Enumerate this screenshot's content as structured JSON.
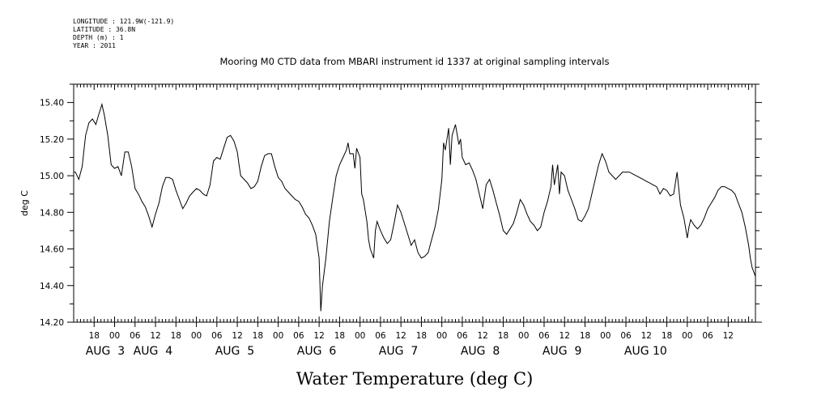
{
  "meta": {
    "longitude": "LONGITUDE : 121.9W(-121.9)",
    "latitude": "LATITUDE : 36.8N",
    "depth": "DEPTH (m) : 1",
    "year": "YEAR : 2011"
  },
  "chart_data": {
    "type": "line",
    "title": "Mooring M0 CTD data from MBARI instrument id 1337 at original sampling intervals",
    "xlabel": "Water Temperature (deg C)",
    "ylabel": "deg C",
    "x_units": "hours since 2011-08-02 12:00",
    "xlim": [
      0,
      200
    ],
    "ylim": [
      14.2,
      15.5
    ],
    "y_ticks": [
      14.2,
      14.4,
      14.6,
      14.8,
      15.0,
      15.2,
      15.4
    ],
    "y_tick_labels": [
      "14.20",
      "14.40",
      "14.60",
      "14.80",
      "15.00",
      "15.20",
      "15.40"
    ],
    "hour_ticks": [
      {
        "x": 6,
        "label": "18"
      },
      {
        "x": 12,
        "label": "00"
      },
      {
        "x": 18,
        "label": "06"
      },
      {
        "x": 24,
        "label": "12"
      },
      {
        "x": 30,
        "label": "18"
      },
      {
        "x": 36,
        "label": "00"
      },
      {
        "x": 42,
        "label": "06"
      },
      {
        "x": 48,
        "label": "12"
      },
      {
        "x": 54,
        "label": "18"
      },
      {
        "x": 60,
        "label": "00"
      },
      {
        "x": 66,
        "label": "06"
      },
      {
        "x": 72,
        "label": "12"
      },
      {
        "x": 78,
        "label": "18"
      },
      {
        "x": 84,
        "label": "00"
      },
      {
        "x": 90,
        "label": "06"
      },
      {
        "x": 96,
        "label": "12"
      },
      {
        "x": 102,
        "label": "18"
      },
      {
        "x": 108,
        "label": "00"
      },
      {
        "x": 114,
        "label": "06"
      },
      {
        "x": 120,
        "label": "12"
      },
      {
        "x": 126,
        "label": "18"
      },
      {
        "x": 132,
        "label": "00"
      },
      {
        "x": 138,
        "label": "06"
      },
      {
        "x": 144,
        "label": "12"
      },
      {
        "x": 150,
        "label": "18"
      },
      {
        "x": 156,
        "label": "00"
      },
      {
        "x": 162,
        "label": "06"
      },
      {
        "x": 168,
        "label": "12"
      },
      {
        "x": 174,
        "label": "18"
      },
      {
        "x": 180,
        "label": "00"
      },
      {
        "x": 186,
        "label": "06"
      },
      {
        "x": 192,
        "label": "12"
      }
    ],
    "day_labels": [
      {
        "x": 3.5,
        "label": "AUG  3"
      },
      {
        "x": 17.5,
        "label": "AUG  4"
      },
      {
        "x": 41.5,
        "label": "AUG  5"
      },
      {
        "x": 65.5,
        "label": "AUG  6"
      },
      {
        "x": 89.5,
        "label": "AUG  7"
      },
      {
        "x": 113.5,
        "label": "AUG  8"
      },
      {
        "x": 137.5,
        "label": "AUG  9"
      },
      {
        "x": 161.5,
        "label": "AUG 10"
      }
    ],
    "series": [
      {
        "values": [
          [
            0,
            15.02
          ],
          [
            0.5,
            15.02
          ],
          [
            1.5,
            14.98
          ],
          [
            2.5,
            15.05
          ],
          [
            3.5,
            15.22
          ],
          [
            4.5,
            15.29
          ],
          [
            5.5,
            15.31
          ],
          [
            6.5,
            15.28
          ],
          [
            7.3,
            15.33
          ],
          [
            8.3,
            15.39
          ],
          [
            9,
            15.33
          ],
          [
            10,
            15.22
          ],
          [
            11,
            15.06
          ],
          [
            12,
            15.04
          ],
          [
            13,
            15.05
          ],
          [
            14,
            15.0
          ],
          [
            15,
            15.13
          ],
          [
            16,
            15.13
          ],
          [
            17,
            15.05
          ],
          [
            18,
            14.93
          ],
          [
            19,
            14.9
          ],
          [
            20,
            14.86
          ],
          [
            21,
            14.83
          ],
          [
            22,
            14.78
          ],
          [
            23,
            14.72
          ],
          [
            24,
            14.79
          ],
          [
            25,
            14.85
          ],
          [
            26,
            14.94
          ],
          [
            27,
            14.99
          ],
          [
            28,
            14.99
          ],
          [
            29,
            14.98
          ],
          [
            30,
            14.92
          ],
          [
            31,
            14.87
          ],
          [
            32,
            14.82
          ],
          [
            33,
            14.85
          ],
          [
            34,
            14.89
          ],
          [
            35,
            14.91
          ],
          [
            36,
            14.93
          ],
          [
            37,
            14.92
          ],
          [
            38,
            14.9
          ],
          [
            39,
            14.89
          ],
          [
            40,
            14.95
          ],
          [
            41,
            15.08
          ],
          [
            42,
            15.1
          ],
          [
            43,
            15.09
          ],
          [
            44,
            15.15
          ],
          [
            45,
            15.21
          ],
          [
            46,
            15.22
          ],
          [
            47,
            15.19
          ],
          [
            48,
            15.13
          ],
          [
            48.5,
            15.06
          ],
          [
            49,
            15.0
          ],
          [
            50,
            14.98
          ],
          [
            51,
            14.96
          ],
          [
            52,
            14.93
          ],
          [
            53,
            14.94
          ],
          [
            54,
            14.97
          ],
          [
            55,
            15.05
          ],
          [
            56,
            15.11
          ],
          [
            57,
            15.12
          ],
          [
            58,
            15.12
          ],
          [
            59,
            15.05
          ],
          [
            60,
            14.99
          ],
          [
            61,
            14.97
          ],
          [
            62,
            14.93
          ],
          [
            63,
            14.91
          ],
          [
            64,
            14.89
          ],
          [
            65,
            14.87
          ],
          [
            66,
            14.86
          ],
          [
            67,
            14.83
          ],
          [
            68,
            14.79
          ],
          [
            69,
            14.77
          ],
          [
            70,
            14.73
          ],
          [
            71,
            14.68
          ],
          [
            72,
            14.55
          ],
          [
            72.5,
            14.26
          ],
          [
            73,
            14.4
          ],
          [
            74,
            14.55
          ],
          [
            75,
            14.75
          ],
          [
            76,
            14.88
          ],
          [
            77,
            15.0
          ],
          [
            78,
            15.06
          ],
          [
            79,
            15.1
          ],
          [
            80,
            15.14
          ],
          [
            80.5,
            15.18
          ],
          [
            81,
            15.12
          ],
          [
            82,
            15.12
          ],
          [
            82.5,
            15.04
          ],
          [
            83,
            15.15
          ],
          [
            84,
            15.1
          ],
          [
            84.5,
            14.9
          ],
          [
            85,
            14.87
          ],
          [
            86,
            14.75
          ],
          [
            86.5,
            14.65
          ],
          [
            87,
            14.6
          ],
          [
            88,
            14.55
          ],
          [
            88.5,
            14.7
          ],
          [
            89,
            14.75
          ],
          [
            90,
            14.7
          ],
          [
            91,
            14.66
          ],
          [
            92,
            14.63
          ],
          [
            93,
            14.65
          ],
          [
            94,
            14.74
          ],
          [
            95,
            14.84
          ],
          [
            96,
            14.8
          ],
          [
            97,
            14.74
          ],
          [
            98,
            14.68
          ],
          [
            99,
            14.62
          ],
          [
            100,
            14.65
          ],
          [
            101,
            14.58
          ],
          [
            102,
            14.55
          ],
          [
            103,
            14.56
          ],
          [
            104,
            14.58
          ],
          [
            105,
            14.65
          ],
          [
            106,
            14.72
          ],
          [
            107,
            14.82
          ],
          [
            108,
            14.98
          ],
          [
            108.5,
            15.18
          ],
          [
            109,
            15.14
          ],
          [
            110,
            15.26
          ],
          [
            110.5,
            15.06
          ],
          [
            111,
            15.22
          ],
          [
            112,
            15.28
          ],
          [
            113,
            15.17
          ],
          [
            113.5,
            15.2
          ],
          [
            114,
            15.1
          ],
          [
            115,
            15.06
          ],
          [
            116,
            15.07
          ],
          [
            117,
            15.03
          ],
          [
            118,
            14.98
          ],
          [
            119,
            14.9
          ],
          [
            120,
            14.82
          ],
          [
            121,
            14.95
          ],
          [
            122,
            14.98
          ],
          [
            123,
            14.92
          ],
          [
            124,
            14.85
          ],
          [
            125,
            14.78
          ],
          [
            126,
            14.7
          ],
          [
            127,
            14.68
          ],
          [
            128,
            14.71
          ],
          [
            129,
            14.74
          ],
          [
            130,
            14.8
          ],
          [
            131,
            14.87
          ],
          [
            132,
            14.84
          ],
          [
            133,
            14.79
          ],
          [
            134,
            14.75
          ],
          [
            135,
            14.73
          ],
          [
            136,
            14.7
          ],
          [
            137,
            14.72
          ],
          [
            138,
            14.8
          ],
          [
            139,
            14.86
          ],
          [
            140,
            14.94
          ],
          [
            140.5,
            15.06
          ],
          [
            141,
            14.95
          ],
          [
            142,
            15.06
          ],
          [
            142.5,
            14.9
          ],
          [
            143,
            15.02
          ],
          [
            144,
            15.0
          ],
          [
            145,
            14.92
          ],
          [
            146,
            14.87
          ],
          [
            147,
            14.82
          ],
          [
            148,
            14.76
          ],
          [
            149,
            14.75
          ],
          [
            150,
            14.78
          ],
          [
            151,
            14.82
          ],
          [
            152,
            14.9
          ],
          [
            153,
            14.98
          ],
          [
            154,
            15.06
          ],
          [
            155,
            15.12
          ],
          [
            156,
            15.08
          ],
          [
            157,
            15.02
          ],
          [
            158,
            15.0
          ],
          [
            159,
            14.98
          ],
          [
            160,
            15.0
          ],
          [
            161,
            15.02
          ],
          [
            162,
            15.02
          ],
          [
            163,
            15.02
          ],
          [
            164,
            15.01
          ],
          [
            165,
            15.0
          ],
          [
            166,
            14.99
          ],
          [
            167,
            14.98
          ],
          [
            168,
            14.97
          ],
          [
            169,
            14.96
          ],
          [
            170,
            14.95
          ],
          [
            171,
            14.94
          ],
          [
            172,
            14.9
          ],
          [
            173,
            14.93
          ],
          [
            174,
            14.92
          ],
          [
            175,
            14.89
          ],
          [
            176,
            14.9
          ],
          [
            177,
            15.02
          ],
          [
            178,
            14.84
          ],
          [
            179,
            14.77
          ],
          [
            180,
            14.66
          ],
          [
            180.5,
            14.72
          ],
          [
            181,
            14.76
          ],
          [
            182,
            14.73
          ],
          [
            183,
            14.71
          ],
          [
            184,
            14.73
          ],
          [
            185,
            14.77
          ],
          [
            186,
            14.82
          ],
          [
            187,
            14.85
          ],
          [
            188,
            14.88
          ],
          [
            189,
            14.92
          ],
          [
            190,
            14.94
          ],
          [
            191,
            14.94
          ],
          [
            192,
            14.93
          ],
          [
            193,
            14.92
          ],
          [
            194,
            14.9
          ],
          [
            195,
            14.85
          ],
          [
            196,
            14.8
          ],
          [
            197,
            14.72
          ],
          [
            198,
            14.62
          ],
          [
            198.5,
            14.55
          ],
          [
            199,
            14.5
          ],
          [
            200,
            14.45
          ]
        ]
      }
    ]
  }
}
